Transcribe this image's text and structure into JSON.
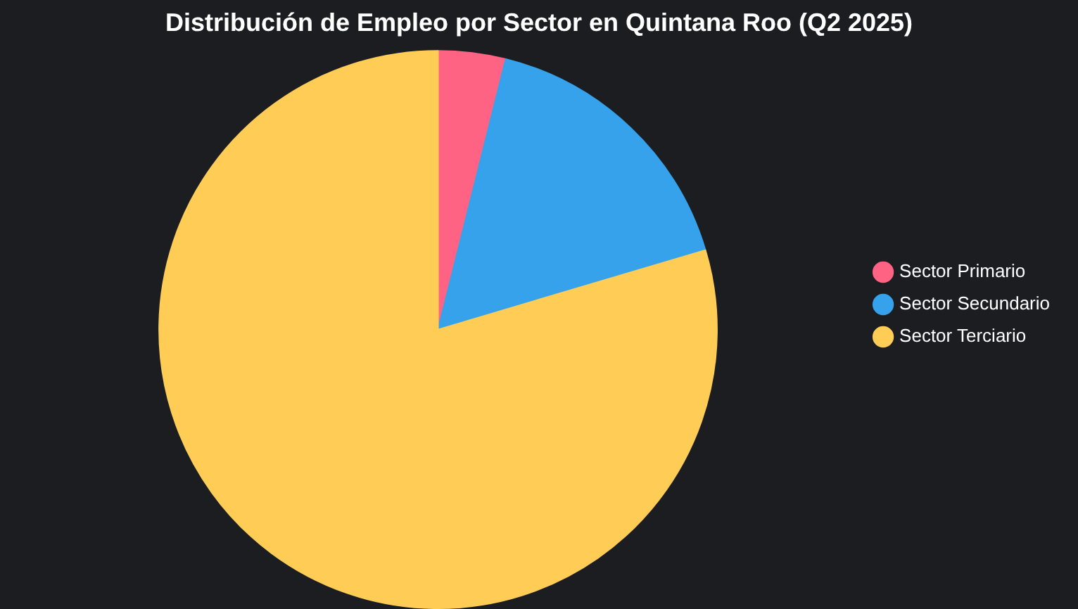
{
  "chart_data": {
    "type": "pie",
    "title": "Distribución de Empleo por Sector en Quintana Roo (Q2 2025)",
    "categories": [
      "Sector Primario",
      "Sector Secundario",
      "Sector Terciario"
    ],
    "values": [
      3.9,
      16.5,
      79.6
    ],
    "colors": [
      "#ff6384",
      "#36a2eb",
      "#ffcd56"
    ],
    "legend": "right"
  }
}
